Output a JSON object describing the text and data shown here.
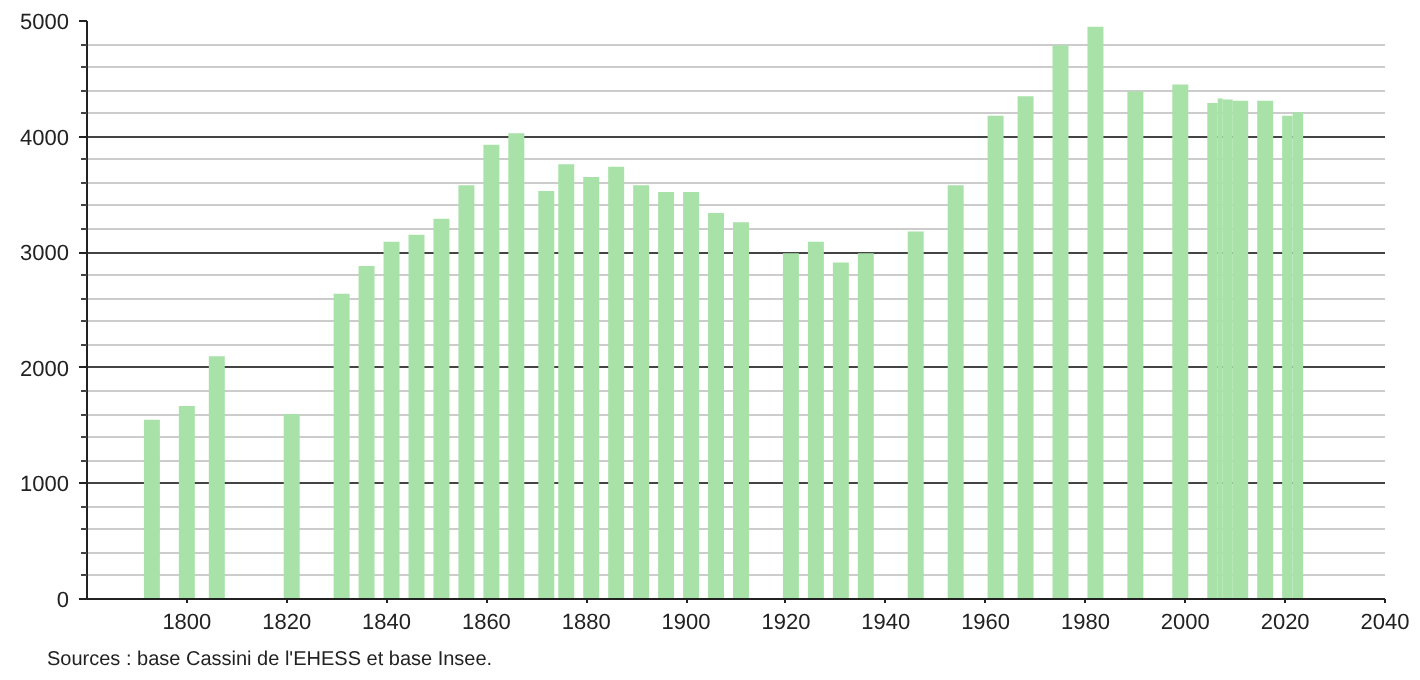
{
  "chart_data": {
    "type": "bar",
    "x": [
      1793,
      1800,
      1806,
      1821,
      1831,
      1836,
      1841,
      1846,
      1851,
      1856,
      1861,
      1866,
      1872,
      1876,
      1881,
      1886,
      1891,
      1896,
      1901,
      1906,
      1911,
      1921,
      1926,
      1931,
      1936,
      1946,
      1954,
      1962,
      1968,
      1975,
      1982,
      1990,
      1999,
      2006,
      2007,
      2008,
      2011,
      2016,
      2021,
      2022
    ],
    "series": [
      {
        "color": "#a8e2a8",
        "values": [
          1550,
          1670,
          2100,
          1600,
          2640,
          2880,
          3090,
          3150,
          3290,
          3580,
          3930,
          4030,
          3530,
          3760,
          3650,
          3740,
          3580,
          3520,
          3520,
          3340,
          3260,
          2990,
          3090,
          2910,
          2990,
          3180,
          3580,
          4180,
          4350,
          4790,
          4950,
          4390,
          4450,
          4290,
          4330,
          4320,
          4310,
          4310,
          4180,
          4210
        ]
      }
    ],
    "xlim": [
      1780,
      2040
    ],
    "xticks": [
      1800,
      1820,
      1840,
      1860,
      1880,
      1900,
      1920,
      1940,
      1960,
      1980,
      2000,
      2020,
      2040
    ],
    "ylim": [
      0,
      5000
    ],
    "yticks": [
      0,
      {
        "value": 200,
        "label": null
      },
      {
        "value": 400,
        "label": null
      },
      {
        "value": 600,
        "label": null
      },
      {
        "value": 800,
        "label": null
      },
      1000,
      {
        "value": 1200,
        "label": null
      },
      {
        "value": 1400,
        "label": null
      },
      {
        "value": 1600,
        "label": null
      },
      {
        "value": 1800,
        "label": null
      },
      2000,
      {
        "value": 2200,
        "label": null
      },
      {
        "value": 2400,
        "label": null
      },
      {
        "value": 2600,
        "label": null
      },
      {
        "value": 2800,
        "label": null
      },
      3000,
      {
        "value": 3200,
        "label": null
      },
      {
        "value": 3400,
        "label": null
      },
      {
        "value": 3600,
        "label": null
      },
      {
        "value": 3800,
        "label": null
      },
      4000,
      {
        "value": 4200,
        "label": null
      },
      {
        "value": 4400,
        "label": null
      },
      {
        "value": 4600,
        "label": null
      },
      {
        "value": 4800,
        "label": null
      },
      5000
    ],
    "grid": "y",
    "annotations": [
      "Sources : base Cassini de l'EHESS et base Insee."
    ]
  }
}
